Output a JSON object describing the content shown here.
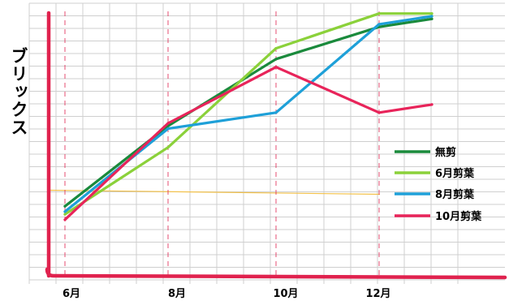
{
  "chart_data": {
    "type": "line",
    "ylabel": "ブリックス",
    "xlabel": "",
    "title": "",
    "categories": [
      "6月",
      "8月",
      "10月",
      "12月",
      ""
    ],
    "ylim": [
      0,
      100
    ],
    "grid": true,
    "legend_placement": "right",
    "series": [
      {
        "name": "無剪",
        "color": "#1a8a3c",
        "values": [
          29,
          59,
          84,
          96,
          99
        ]
      },
      {
        "name": "6月剪葉",
        "color": "#8bd13a",
        "values": [
          26,
          51,
          88,
          101,
          101
        ]
      },
      {
        "name": "8月剪葉",
        "color": "#1ea0d8",
        "values": [
          27,
          58,
          64,
          97,
          100
        ]
      },
      {
        "name": "10月剪葉",
        "color": "#e8245a",
        "values": [
          24,
          60,
          81,
          64,
          67
        ]
      }
    ],
    "annotations": {
      "reference_line_value": 35,
      "reference_line_color": "#f2c14a",
      "axis_color": "#e0224e"
    }
  }
}
